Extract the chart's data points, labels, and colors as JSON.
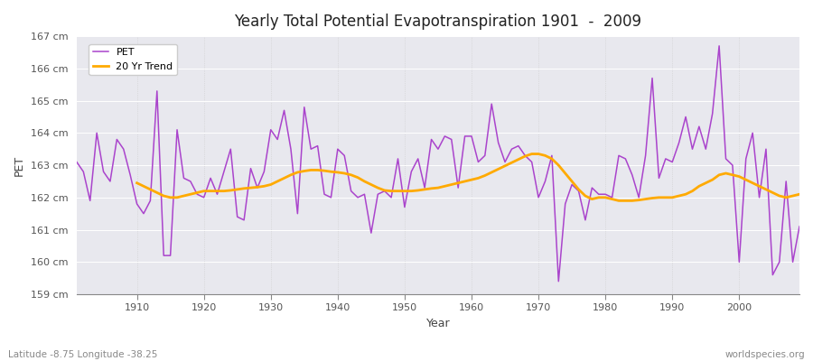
{
  "title": "Yearly Total Potential Evapotranspiration 1901  -  2009",
  "xlabel": "Year",
  "ylabel": "PET",
  "subtitle": "Latitude -8.75 Longitude -38.25",
  "watermark": "worldspecies.org",
  "pet_color": "#aa44cc",
  "trend_color": "#ffaa00",
  "fig_bg_color": "#ffffff",
  "plot_bg_color": "#e8e8ee",
  "ylim": [
    159,
    167
  ],
  "yticks": [
    159,
    160,
    161,
    162,
    163,
    164,
    165,
    166,
    167
  ],
  "ytick_labels": [
    "159 cm",
    "160 cm",
    "161 cm",
    "162 cm",
    "163 cm",
    "164 cm",
    "165 cm",
    "166 cm",
    "167 cm"
  ],
  "xticks": [
    1910,
    1920,
    1930,
    1940,
    1950,
    1960,
    1970,
    1980,
    1990,
    2000
  ],
  "xlim": [
    1901,
    2009
  ],
  "years": [
    1901,
    1902,
    1903,
    1904,
    1905,
    1906,
    1907,
    1908,
    1909,
    1910,
    1911,
    1912,
    1913,
    1914,
    1915,
    1916,
    1917,
    1918,
    1919,
    1920,
    1921,
    1922,
    1923,
    1924,
    1925,
    1926,
    1927,
    1928,
    1929,
    1930,
    1931,
    1932,
    1933,
    1934,
    1935,
    1936,
    1937,
    1938,
    1939,
    1940,
    1941,
    1942,
    1943,
    1944,
    1945,
    1946,
    1947,
    1948,
    1949,
    1950,
    1951,
    1952,
    1953,
    1954,
    1955,
    1956,
    1957,
    1958,
    1959,
    1960,
    1961,
    1962,
    1963,
    1964,
    1965,
    1966,
    1967,
    1968,
    1969,
    1970,
    1971,
    1972,
    1973,
    1974,
    1975,
    1976,
    1977,
    1978,
    1979,
    1980,
    1981,
    1982,
    1983,
    1984,
    1985,
    1986,
    1987,
    1988,
    1989,
    1990,
    1991,
    1992,
    1993,
    1994,
    1995,
    1996,
    1997,
    1998,
    1999,
    2000,
    2001,
    2002,
    2003,
    2004,
    2005,
    2006,
    2007,
    2008,
    2009
  ],
  "pet_values": [
    163.1,
    162.8,
    161.9,
    164.0,
    162.8,
    162.5,
    163.8,
    163.5,
    162.7,
    161.8,
    161.5,
    161.9,
    165.3,
    160.2,
    160.2,
    164.1,
    162.6,
    162.5,
    162.1,
    162.0,
    162.6,
    162.1,
    162.8,
    163.5,
    161.4,
    161.3,
    162.9,
    162.3,
    162.8,
    164.1,
    163.8,
    164.7,
    163.5,
    161.5,
    164.8,
    163.5,
    163.6,
    162.1,
    162.0,
    163.5,
    163.3,
    162.2,
    162.0,
    162.1,
    160.9,
    162.1,
    162.2,
    162.0,
    163.2,
    161.7,
    162.8,
    163.2,
    162.3,
    163.8,
    163.5,
    163.9,
    163.8,
    162.3,
    163.9,
    163.9,
    163.1,
    163.3,
    164.9,
    163.7,
    163.1,
    163.5,
    163.6,
    163.3,
    163.1,
    162.0,
    162.5,
    163.3,
    159.4,
    161.8,
    162.4,
    162.2,
    161.3,
    162.3,
    162.1,
    162.1,
    162.0,
    163.3,
    163.2,
    162.7,
    162.0,
    163.3,
    165.7,
    162.6,
    163.2,
    163.1,
    163.7,
    164.5,
    163.5,
    164.2,
    163.5,
    164.6,
    166.7,
    163.2,
    163.0,
    160.0,
    163.2,
    164.0,
    162.0,
    163.5,
    159.6,
    160.0,
    162.5,
    160.0,
    161.1
  ],
  "trend_years": [
    1910,
    1911,
    1912,
    1913,
    1914,
    1915,
    1916,
    1917,
    1918,
    1919,
    1920,
    1921,
    1922,
    1923,
    1924,
    1925,
    1926,
    1927,
    1928,
    1929,
    1930,
    1931,
    1932,
    1933,
    1934,
    1935,
    1936,
    1937,
    1938,
    1939,
    1940,
    1941,
    1942,
    1943,
    1944,
    1945,
    1946,
    1947,
    1948,
    1949,
    1950,
    1951,
    1952,
    1953,
    1954,
    1955,
    1956,
    1957,
    1958,
    1959,
    1960,
    1961,
    1962,
    1963,
    1964,
    1965,
    1966,
    1967,
    1968,
    1969,
    1970,
    1971,
    1972,
    1973,
    1974,
    1975,
    1976,
    1977,
    1978,
    1979,
    1980,
    1981,
    1982,
    1983,
    1984,
    1985,
    1986,
    1987,
    1988,
    1989,
    1990,
    1991,
    1992,
    1993,
    1994,
    1995,
    1996,
    1997,
    1998,
    1999,
    2000,
    2001,
    2002,
    2003,
    2004,
    2005,
    2006,
    2007,
    2008,
    2009
  ],
  "trend_values": [
    162.45,
    162.35,
    162.25,
    162.15,
    162.05,
    162.0,
    162.0,
    162.05,
    162.1,
    162.15,
    162.2,
    162.2,
    162.2,
    162.2,
    162.22,
    162.25,
    162.28,
    162.3,
    162.32,
    162.35,
    162.4,
    162.5,
    162.6,
    162.7,
    162.78,
    162.82,
    162.85,
    162.85,
    162.83,
    162.8,
    162.78,
    162.75,
    162.7,
    162.62,
    162.5,
    162.4,
    162.3,
    162.22,
    162.2,
    162.2,
    162.2,
    162.2,
    162.22,
    162.25,
    162.28,
    162.3,
    162.35,
    162.4,
    162.45,
    162.5,
    162.55,
    162.6,
    162.68,
    162.78,
    162.88,
    162.98,
    163.08,
    163.18,
    163.28,
    163.35,
    163.35,
    163.3,
    163.2,
    163.0,
    162.75,
    162.5,
    162.25,
    162.05,
    161.95,
    162.0,
    162.0,
    161.95,
    161.9,
    161.9,
    161.9,
    161.92,
    161.95,
    161.98,
    162.0,
    162.0,
    162.0,
    162.05,
    162.1,
    162.2,
    162.35,
    162.45,
    162.55,
    162.7,
    162.75,
    162.7,
    162.65,
    162.55,
    162.45,
    162.35,
    162.25,
    162.15,
    162.05,
    162.0,
    162.05,
    162.1
  ]
}
